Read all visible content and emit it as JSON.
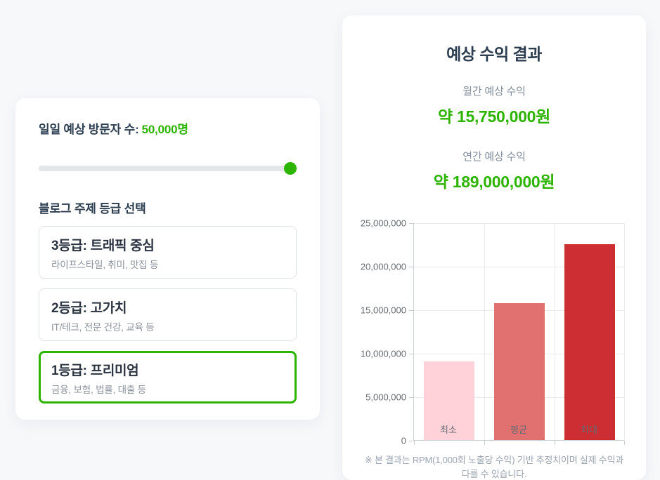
{
  "page": {
    "background": "#f7f8fa"
  },
  "colors": {
    "accent_green": "#2db400",
    "heading_navy": "#2c3e50",
    "muted_gray": "#8a929c"
  },
  "calculator": {
    "visitors_label": "일일 예상 방문자 수:",
    "visitors_value": "50,000명",
    "slider": {
      "value_percent": 100
    },
    "grade_section_title": "블로그 주제 등급 선택",
    "grade_options": [
      {
        "title": "3등급: 트래픽 중심",
        "subtitle": "라이프스타일, 취미, 맛집 등",
        "selected": false
      },
      {
        "title": "2등급: 고가치",
        "subtitle": "IT/테크, 전문 건강, 교육 등",
        "selected": false
      },
      {
        "title": "1등급: 프리미엄",
        "subtitle": "금융, 보험, 법률, 대출 등",
        "selected": true
      }
    ]
  },
  "results": {
    "title": "예상 수익 결과",
    "monthly_label": "월간 예상 수익",
    "monthly_value": "약 15,750,000원",
    "annual_label": "연간 예상 수익",
    "annual_value": "약 189,000,000원",
    "disclaimer": "※ 본 결과는 RPM(1,000회 노출당 수익) 기반 추정치이며 실제 수익과 다를 수 있습니다."
  },
  "chart_data": {
    "type": "bar",
    "categories": [
      "최소",
      "평균",
      "최대"
    ],
    "values": [
      9000000,
      15750000,
      22500000
    ],
    "bar_colors": [
      "#ffd1d9",
      "#e17070",
      "#cc2e33"
    ],
    "title": "",
    "xlabel": "",
    "ylabel": "",
    "ylim": [
      0,
      25000000
    ],
    "ytick_step": 5000000,
    "grid": true,
    "legend": false
  }
}
